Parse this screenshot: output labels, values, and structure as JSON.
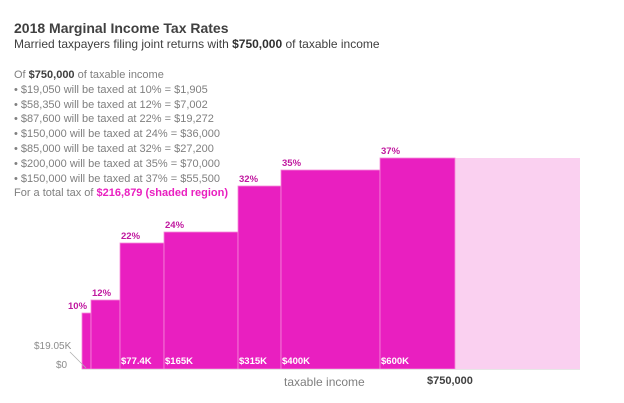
{
  "header": {
    "title": "2018 Marginal Income Tax Rates",
    "subtitle_pre": "Married taxpayers filing joint returns with ",
    "subtitle_bold": "$750,000",
    "subtitle_post": " of taxable income"
  },
  "notes": {
    "intro_pre": "Of ",
    "intro_bold": "$750,000",
    "intro_post": " of taxable income",
    "lines": [
      "• $19,050 will be taxed at 10% = $1,905",
      "• $58,350 will be taxed at 12% = $7,002",
      "• $87,600 will be taxed at 22% = $19,272",
      "• $150,000 will be taxed at 24% = $36,000",
      "• $85,000 will be taxed at 32% = $27,200",
      "• $200,000 will be taxed at 35% = $70,000",
      "• $150,000 will be taxed at 37% = $55,500"
    ],
    "total_pre": "For a total tax of ",
    "total_highlight": "$216,879 (shaded region)"
  },
  "colors": {
    "shaded": "#e91fc0",
    "unshaded": "#fad0f0",
    "label": "#c0189f"
  },
  "chart_data": {
    "type": "bar",
    "variant": "variable-width step (marginal tax brackets)",
    "title": "2018 Marginal Income Tax Rates",
    "xlabel": "taxable income",
    "ylabel": "",
    "brackets": [
      {
        "from": 0,
        "to": 19050,
        "rate": 10,
        "rate_label": "10%",
        "start_label": "$0"
      },
      {
        "from": 19050,
        "to": 77400,
        "rate": 12,
        "rate_label": "12%",
        "start_label": "$19.05K"
      },
      {
        "from": 77400,
        "to": 165000,
        "rate": 22,
        "rate_label": "22%",
        "start_label": "$77.4K"
      },
      {
        "from": 165000,
        "to": 315000,
        "rate": 24,
        "rate_label": "24%",
        "start_label": "$165K"
      },
      {
        "from": 315000,
        "to": 400000,
        "rate": 32,
        "rate_label": "32%",
        "start_label": "$315K"
      },
      {
        "from": 400000,
        "to": 600000,
        "rate": 35,
        "rate_label": "35%",
        "start_label": "$400K"
      },
      {
        "from": 600000,
        "to": 750000,
        "rate": 37,
        "rate_label": "37%",
        "start_label": "$600K"
      }
    ],
    "unshaded_extension": {
      "from": 750000,
      "to": 1000000,
      "rate": 37
    },
    "income_marker": {
      "value": 750000,
      "label": "$750,000"
    },
    "ylim": [
      0,
      40
    ],
    "grid": false,
    "legend": "none"
  }
}
